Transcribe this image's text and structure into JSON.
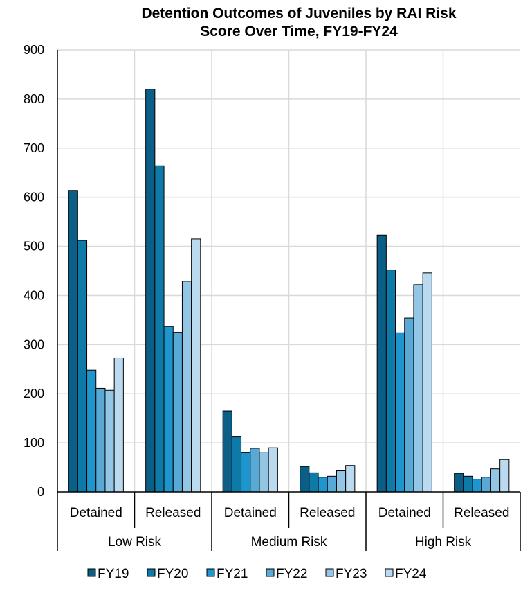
{
  "chart_data": {
    "type": "bar",
    "title_lines": [
      "Detention Outcomes of Juveniles by RAI Risk",
      "Score Over Time, FY19-FY24"
    ],
    "groups": [
      {
        "label": "Low Risk",
        "subcategories": [
          "Detained",
          "Released"
        ]
      },
      {
        "label": "Medium Risk",
        "subcategories": [
          "Detained",
          "Released"
        ]
      },
      {
        "label": "High Risk",
        "subcategories": [
          "Detained",
          "Released"
        ]
      }
    ],
    "categories": [
      "Detained",
      "Released",
      "Detained",
      "Released",
      "Detained",
      "Released"
    ],
    "series": [
      {
        "name": "FY19",
        "color": "#0b5f86",
        "values": [
          614,
          820,
          165,
          52,
          523,
          38
        ]
      },
      {
        "name": "FY20",
        "color": "#0d7aa7",
        "values": [
          512,
          664,
          112,
          39,
          452,
          32
        ]
      },
      {
        "name": "FY21",
        "color": "#1e95cc",
        "values": [
          248,
          337,
          80,
          30,
          324,
          26
        ]
      },
      {
        "name": "FY22",
        "color": "#58a9d6",
        "values": [
          211,
          325,
          89,
          32,
          354,
          30
        ]
      },
      {
        "name": "FY23",
        "color": "#93c6e5",
        "values": [
          207,
          429,
          81,
          43,
          422,
          47
        ]
      },
      {
        "name": "FY24",
        "color": "#bbdaef",
        "values": [
          273,
          515,
          90,
          54,
          446,
          66
        ]
      }
    ],
    "y_ticks": [
      "0",
      "100",
      "200",
      "300",
      "400",
      "500",
      "600",
      "700",
      "800",
      "900"
    ],
    "ylim": [
      0,
      900
    ],
    "grid": true,
    "legend_position": "bottom"
  }
}
